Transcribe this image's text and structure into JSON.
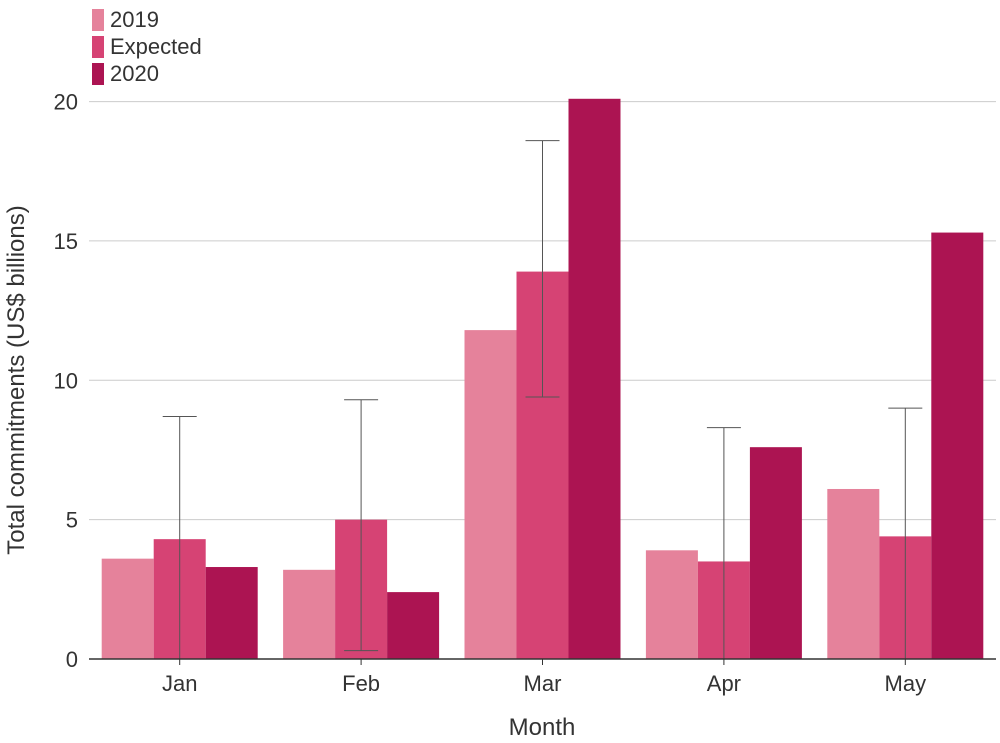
{
  "chart_data": {
    "type": "bar",
    "categories": [
      "Jan",
      "Feb",
      "Mar",
      "Apr",
      "May"
    ],
    "series": [
      {
        "name": "2019",
        "color": "#e5829b",
        "values": [
          3.6,
          3.2,
          11.8,
          3.9,
          6.1
        ]
      },
      {
        "name": "Expected",
        "color": "#d64374",
        "values": [
          4.3,
          5.0,
          13.9,
          3.5,
          4.4
        ],
        "error_low": [
          0.0,
          0.3,
          9.4,
          0.0,
          0.0
        ],
        "error_high": [
          8.7,
          9.3,
          18.6,
          8.3,
          9.0
        ]
      },
      {
        "name": "2020",
        "color": "#ac1452",
        "values": [
          3.3,
          2.4,
          20.1,
          7.6,
          15.3
        ]
      }
    ],
    "title": "",
    "xlabel": "Month",
    "ylabel": "Total commitments (US$ billions)",
    "ylim": [
      0,
      20.2
    ],
    "yticks": [
      0,
      5,
      10,
      15,
      20
    ],
    "grid": true,
    "legend_position": "top-left",
    "error_bar_color": "#555555"
  }
}
